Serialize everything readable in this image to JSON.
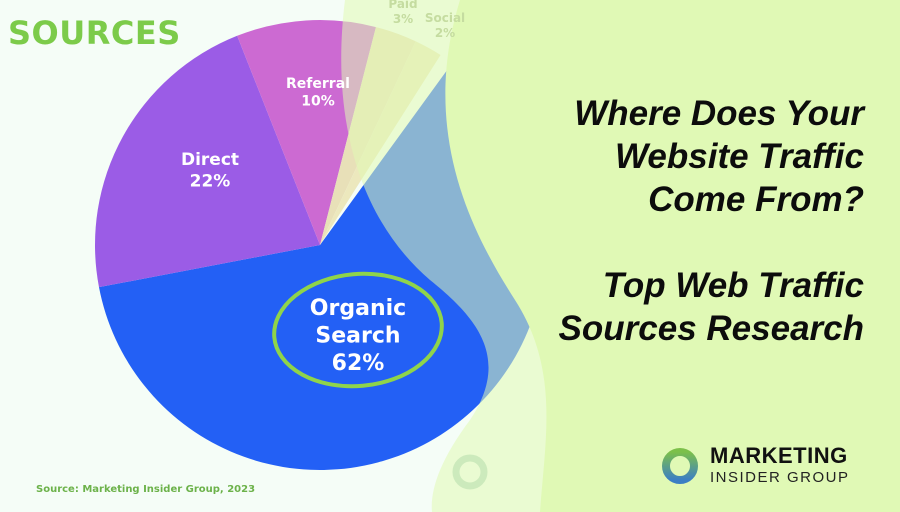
{
  "heading": "SOURCES",
  "source_note": "Source: Marketing Insider Group, 2023",
  "titles": {
    "line1": "Where Does Your",
    "line2": "Website Traffic",
    "line3": "Come From?",
    "line4": "Top Web Traffic",
    "line5": "Sources Research"
  },
  "logo": {
    "line1": "MARKETING",
    "line2": "INSIDER GROUP"
  },
  "colors": {
    "background_left": "#f5fdf7",
    "background_right": "#e0f9b5",
    "heading": "#7ccb4a",
    "highlight_circle": "#8fd44a"
  },
  "chart_data": {
    "type": "pie",
    "unit": "%",
    "slices": [
      {
        "label": "Organic Search",
        "value": 62,
        "color": "#2360f5",
        "highlighted": true
      },
      {
        "label": "Direct",
        "value": 22,
        "color": "#9b5ce6"
      },
      {
        "label": "Referral",
        "value": 10,
        "color": "#cc6ad2"
      },
      {
        "label": "Paid",
        "value": 3,
        "color": "#e8e0b8"
      },
      {
        "label": "Social",
        "value": 2,
        "color": "#ece8bd"
      }
    ]
  }
}
